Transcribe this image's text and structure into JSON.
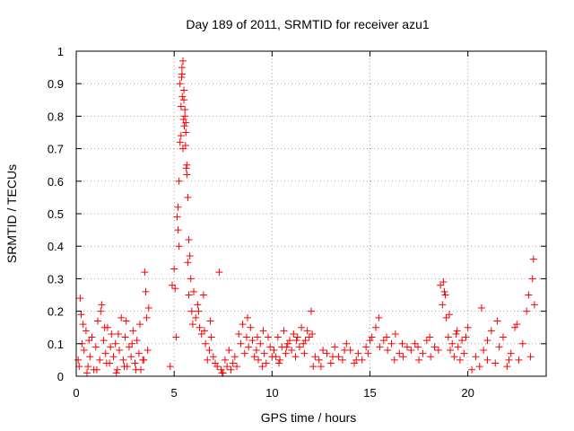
{
  "chart_data": {
    "type": "scatter",
    "title": "Day 189 of 2011, SRMTID for receiver azu1",
    "xlabel": "GPS time / hours",
    "ylabel": "SRMTID / TECUs",
    "xlim": [
      0,
      24
    ],
    "ylim": [
      0,
      1
    ],
    "x_ticks": [
      0,
      5,
      10,
      15,
      20
    ],
    "x_tick_labels": [
      "0",
      "5",
      "10",
      "15",
      "20"
    ],
    "y_ticks": [
      0,
      0.1,
      0.2,
      0.3,
      0.4,
      0.5,
      0.6,
      0.7,
      0.8,
      0.9,
      1
    ],
    "y_tick_labels": [
      "0",
      "0.1",
      "0.2",
      "0.3",
      "0.4",
      "0.5",
      "0.6",
      "0.7",
      "0.8",
      "0.9",
      "1"
    ],
    "grid": true,
    "marker": "+",
    "color": "#ff0000",
    "series": [
      {
        "name": "azu1",
        "x": [
          0.1,
          0.2,
          0.3,
          0.4,
          0.5,
          0.6,
          0.7,
          0.8,
          0.9,
          1.0,
          1.1,
          1.2,
          1.3,
          1.4,
          1.5,
          1.6,
          1.7,
          1.8,
          1.9,
          2.0,
          2.1,
          2.2,
          2.3,
          2.4,
          2.5,
          2.6,
          2.7,
          2.8,
          2.9,
          3.0,
          3.1,
          3.2,
          3.3,
          3.4,
          3.5,
          3.6,
          3.7,
          0.25,
          0.35,
          0.65,
          1.25,
          1.45,
          1.75,
          2.15,
          2.55,
          2.85,
          3.25,
          3.55,
          3.65,
          0.15,
          0.55,
          1.05,
          1.55,
          2.05,
          2.45,
          3.05,
          3.45,
          4.8,
          4.9,
          5.0,
          5.05,
          5.1,
          5.15,
          5.2,
          5.25,
          5.3,
          5.35,
          5.4,
          5.45,
          5.5,
          5.55,
          5.6,
          5.65,
          5.7,
          5.75,
          5.8,
          5.85,
          5.9,
          5.95,
          6.0,
          5.3,
          5.4,
          5.5,
          5.6,
          5.35,
          5.45,
          5.55,
          5.65,
          5.38,
          5.42,
          5.48,
          5.52,
          5.58,
          5.62,
          5.2,
          5.25,
          5.7,
          5.75,
          6.1,
          6.2,
          6.3,
          6.4,
          6.5,
          6.6,
          6.7,
          6.8,
          6.9,
          7.0,
          7.1,
          7.2,
          7.3,
          7.4,
          7.5,
          7.6,
          7.7,
          7.8,
          7.9,
          8.0,
          8.1,
          8.2,
          8.3,
          8.4,
          8.5,
          8.6,
          8.7,
          8.8,
          8.9,
          9.0,
          9.1,
          9.2,
          9.3,
          9.4,
          9.5,
          9.6,
          9.7,
          9.8,
          9.9,
          10.0,
          6.25,
          6.55,
          6.85,
          7.45,
          8.75,
          9.25,
          9.55,
          10.1,
          10.2,
          10.3,
          10.4,
          10.5,
          10.6,
          10.7,
          10.8,
          10.9,
          11.0,
          11.1,
          11.2,
          11.3,
          11.4,
          11.5,
          11.6,
          11.7,
          11.8,
          11.9,
          12.0,
          12.1,
          10.35,
          10.75,
          11.25,
          11.65,
          12.05,
          12.2,
          12.4,
          12.6,
          12.8,
          13.0,
          13.2,
          13.4,
          13.6,
          13.8,
          14.0,
          14.2,
          14.4,
          14.6,
          14.8,
          15.0,
          12.5,
          13.1,
          13.7,
          14.3,
          14.9,
          15.1,
          15.3,
          15.5,
          15.7,
          15.9,
          16.1,
          16.3,
          16.5,
          16.7,
          16.9,
          17.1,
          17.3,
          17.5,
          17.7,
          17.9,
          18.1,
          18.3,
          18.5,
          15.45,
          15.85,
          16.25,
          16.65,
          17.45,
          18.05,
          18.6,
          18.7,
          18.8,
          18.9,
          19.0,
          19.1,
          19.2,
          19.3,
          19.4,
          19.5,
          19.6,
          19.7,
          19.8,
          19.9,
          20.0,
          18.75,
          18.85,
          19.05,
          19.45,
          20.2,
          20.4,
          20.6,
          20.8,
          21.0,
          21.2,
          21.4,
          21.6,
          21.8,
          22.0,
          22.2,
          22.4,
          22.6,
          22.8,
          23.0,
          23.2,
          23.4,
          20.7,
          21.0,
          21.5,
          22.1,
          22.5,
          23.1,
          23.3,
          23.35
        ],
        "y": [
          0.05,
          0.24,
          0.1,
          0.08,
          0.14,
          0.03,
          0.06,
          0.12,
          0.02,
          0.09,
          0.17,
          0.05,
          0.22,
          0.11,
          0.07,
          0.15,
          0.04,
          0.13,
          0.06,
          0.1,
          0.02,
          0.08,
          0.18,
          0.05,
          0.12,
          0.03,
          0.09,
          0.06,
          0.14,
          0.04,
          0.11,
          0.07,
          0.02,
          0.05,
          0.32,
          0.18,
          0.21,
          0.19,
          0.16,
          0.11,
          0.2,
          0.15,
          0.09,
          0.13,
          0.17,
          0.1,
          0.16,
          0.26,
          0.08,
          0.03,
          0.01,
          0.02,
          0.04,
          0.01,
          0.03,
          0.02,
          0.05,
          0.03,
          0.28,
          0.33,
          0.27,
          0.12,
          0.49,
          0.52,
          0.6,
          0.72,
          0.83,
          0.93,
          0.97,
          0.88,
          0.8,
          0.75,
          0.65,
          0.55,
          0.42,
          0.37,
          0.3,
          0.2,
          0.16,
          0.26,
          0.9,
          0.95,
          0.85,
          0.78,
          0.74,
          0.7,
          0.82,
          0.62,
          0.92,
          0.86,
          0.79,
          0.77,
          0.71,
          0.64,
          0.45,
          0.4,
          0.35,
          0.25,
          0.18,
          0.22,
          0.15,
          0.13,
          0.25,
          0.1,
          0.05,
          0.08,
          0.12,
          0.06,
          0.04,
          0.03,
          0.32,
          0.02,
          0.01,
          0.05,
          0.03,
          0.08,
          0.02,
          0.04,
          0.06,
          0.03,
          0.13,
          0.1,
          0.16,
          0.07,
          0.12,
          0.09,
          0.15,
          0.11,
          0.06,
          0.08,
          0.05,
          0.1,
          0.03,
          0.07,
          0.04,
          0.12,
          0.09,
          0.06,
          0.2,
          0.14,
          0.17,
          0.01,
          0.18,
          0.12,
          0.14,
          0.08,
          0.06,
          0.12,
          0.05,
          0.09,
          0.14,
          0.07,
          0.1,
          0.11,
          0.08,
          0.13,
          0.06,
          0.12,
          0.09,
          0.15,
          0.1,
          0.11,
          0.14,
          0.12,
          0.2,
          0.03,
          0.04,
          0.09,
          0.11,
          0.07,
          0.13,
          0.06,
          0.05,
          0.08,
          0.07,
          0.04,
          0.09,
          0.06,
          0.05,
          0.1,
          0.08,
          0.04,
          0.07,
          0.05,
          0.09,
          0.11,
          0.03,
          0.06,
          0.08,
          0.05,
          0.07,
          0.12,
          0.15,
          0.09,
          0.11,
          0.08,
          0.1,
          0.13,
          0.07,
          0.06,
          0.09,
          0.08,
          0.1,
          0.05,
          0.07,
          0.11,
          0.06,
          0.09,
          0.08,
          0.18,
          0.12,
          0.05,
          0.1,
          0.09,
          0.12,
          0.28,
          0.22,
          0.26,
          0.18,
          0.12,
          0.08,
          0.1,
          0.06,
          0.13,
          0.09,
          0.05,
          0.11,
          0.07,
          0.12,
          0.15,
          0.29,
          0.25,
          0.19,
          0.14,
          0.02,
          0.06,
          0.03,
          0.08,
          0.05,
          0.14,
          0.04,
          0.09,
          0.12,
          0.03,
          0.07,
          0.15,
          0.05,
          0.1,
          0.2,
          0.06,
          0.22,
          0.21,
          0.11,
          0.17,
          0.05,
          0.16,
          0.25,
          0.3,
          0.36
        ]
      }
    ]
  }
}
